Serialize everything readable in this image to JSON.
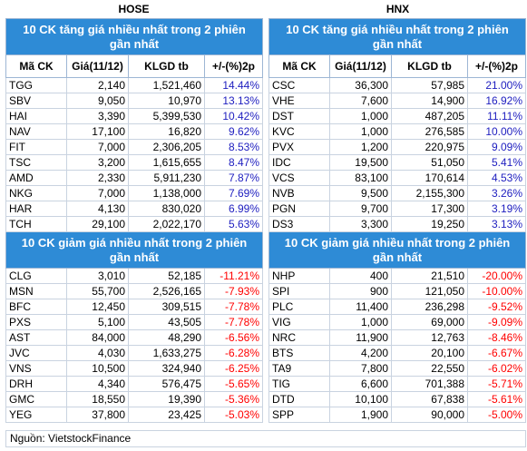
{
  "hose": {
    "title": "HOSE",
    "gainers": {
      "banner": "10 CK tăng giá nhiều nhất trong 2 phiên gần nhất",
      "rows": [
        {
          "sym": "TGG",
          "price": "2,140",
          "vol": "1,521,460",
          "pct": "14.44%"
        },
        {
          "sym": "SBV",
          "price": "9,050",
          "vol": "10,970",
          "pct": "13.13%"
        },
        {
          "sym": "HAI",
          "price": "3,390",
          "vol": "5,399,530",
          "pct": "10.42%"
        },
        {
          "sym": "NAV",
          "price": "17,100",
          "vol": "16,820",
          "pct": "9.62%"
        },
        {
          "sym": "FIT",
          "price": "7,000",
          "vol": "2,306,205",
          "pct": "8.53%"
        },
        {
          "sym": "TSC",
          "price": "3,200",
          "vol": "1,615,655",
          "pct": "8.47%"
        },
        {
          "sym": "AMD",
          "price": "2,330",
          "vol": "5,911,230",
          "pct": "7.87%"
        },
        {
          "sym": "NKG",
          "price": "7,000",
          "vol": "1,138,000",
          "pct": "7.69%"
        },
        {
          "sym": "HAR",
          "price": "4,130",
          "vol": "830,020",
          "pct": "6.99%"
        },
        {
          "sym": "TCH",
          "price": "29,100",
          "vol": "2,022,170",
          "pct": "5.63%"
        }
      ]
    },
    "losers": {
      "banner": "10 CK giảm giá nhiều nhất trong 2 phiên gần nhất",
      "rows": [
        {
          "sym": "CLG",
          "price": "3,010",
          "vol": "52,185",
          "pct": "-11.21%"
        },
        {
          "sym": "MSN",
          "price": "55,700",
          "vol": "2,526,165",
          "pct": "-7.93%"
        },
        {
          "sym": "BFC",
          "price": "12,450",
          "vol": "309,515",
          "pct": "-7.78%"
        },
        {
          "sym": "PXS",
          "price": "5,100",
          "vol": "43,505",
          "pct": "-7.78%"
        },
        {
          "sym": "AST",
          "price": "84,000",
          "vol": "48,290",
          "pct": "-6.56%"
        },
        {
          "sym": "JVC",
          "price": "4,030",
          "vol": "1,633,275",
          "pct": "-6.28%"
        },
        {
          "sym": "VNS",
          "price": "10,500",
          "vol": "324,940",
          "pct": "-6.25%"
        },
        {
          "sym": "DRH",
          "price": "4,340",
          "vol": "576,475",
          "pct": "-5.65%"
        },
        {
          "sym": "GMC",
          "price": "18,550",
          "vol": "19,390",
          "pct": "-5.36%"
        },
        {
          "sym": "YEG",
          "price": "37,800",
          "vol": "23,425",
          "pct": "-5.03%"
        }
      ]
    }
  },
  "hnx": {
    "title": "HNX",
    "gainers": {
      "banner": "10 CK tăng giá nhiều nhất trong 2 phiên gần nhất",
      "rows": [
        {
          "sym": "CSC",
          "price": "36,300",
          "vol": "57,985",
          "pct": "21.00%"
        },
        {
          "sym": "VHE",
          "price": "7,600",
          "vol": "14,900",
          "pct": "16.92%"
        },
        {
          "sym": "DST",
          "price": "1,000",
          "vol": "487,205",
          "pct": "11.11%"
        },
        {
          "sym": "KVC",
          "price": "1,000",
          "vol": "276,585",
          "pct": "10.00%"
        },
        {
          "sym": "PVX",
          "price": "1,200",
          "vol": "220,975",
          "pct": "9.09%"
        },
        {
          "sym": "IDC",
          "price": "19,500",
          "vol": "51,050",
          "pct": "5.41%"
        },
        {
          "sym": "VCS",
          "price": "83,100",
          "vol": "170,614",
          "pct": "4.53%"
        },
        {
          "sym": "NVB",
          "price": "9,500",
          "vol": "2,155,300",
          "pct": "3.26%"
        },
        {
          "sym": "PGN",
          "price": "9,700",
          "vol": "17,300",
          "pct": "3.19%"
        },
        {
          "sym": "DS3",
          "price": "3,300",
          "vol": "19,250",
          "pct": "3.13%"
        }
      ]
    },
    "losers": {
      "banner": "10 CK giảm giá nhiều nhất trong 2 phiên gần nhất",
      "rows": [
        {
          "sym": "NHP",
          "price": "400",
          "vol": "21,510",
          "pct": "-20.00%"
        },
        {
          "sym": "SPI",
          "price": "900",
          "vol": "121,050",
          "pct": "-10.00%"
        },
        {
          "sym": "PLC",
          "price": "11,400",
          "vol": "236,298",
          "pct": "-9.52%"
        },
        {
          "sym": "VIG",
          "price": "1,000",
          "vol": "69,000",
          "pct": "-9.09%"
        },
        {
          "sym": "NRC",
          "price": "11,900",
          "vol": "12,763",
          "pct": "-8.46%"
        },
        {
          "sym": "BTS",
          "price": "4,200",
          "vol": "20,100",
          "pct": "-6.67%"
        },
        {
          "sym": "TA9",
          "price": "7,800",
          "vol": "22,550",
          "pct": "-6.02%"
        },
        {
          "sym": "TIG",
          "price": "6,600",
          "vol": "701,388",
          "pct": "-5.71%"
        },
        {
          "sym": "DTD",
          "price": "10,100",
          "vol": "67,838",
          "pct": "-5.61%"
        },
        {
          "sym": "SPP",
          "price": "1,900",
          "vol": "90,000",
          "pct": "-5.00%"
        }
      ]
    }
  },
  "columns": {
    "symbol": "Mã CK",
    "price": "Giá(11/12)",
    "volume": "KLGD tb",
    "change": "+/-(%)2p"
  },
  "source": "Nguồn: VietstockFinance",
  "colors": {
    "banner_bg": "#2e8bd6",
    "up_text": "#2020c0",
    "down_text": "#ff0000"
  }
}
